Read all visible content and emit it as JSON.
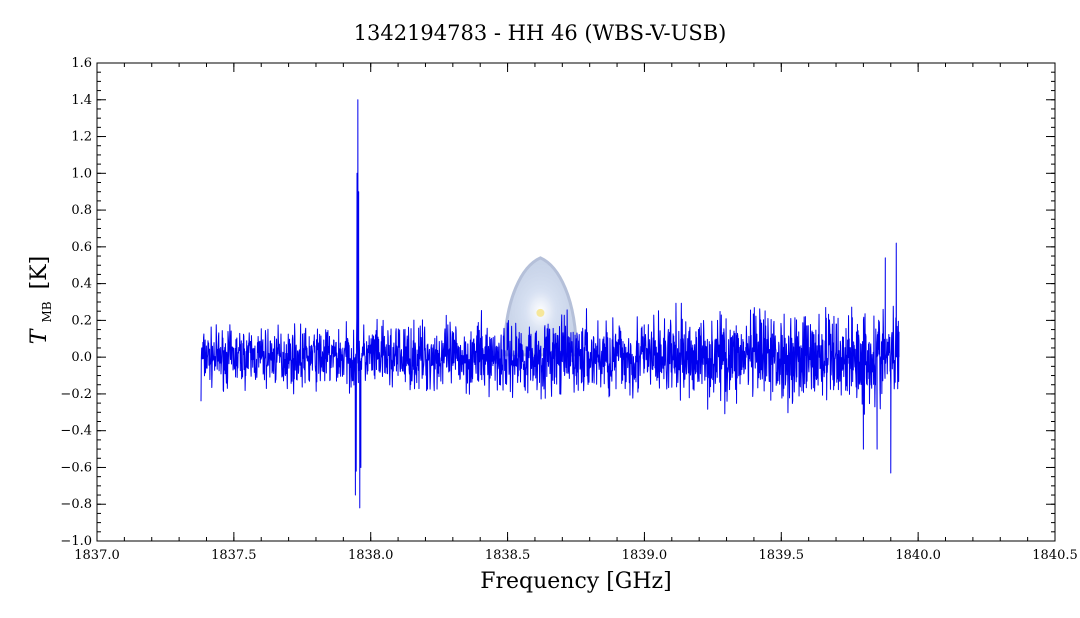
{
  "chart_data": {
    "type": "line",
    "title": "1342194783 - HH 46 (WBS-V-USB)",
    "xlabel": "Frequency [GHz]",
    "ylabel": {
      "symbol": "T",
      "subscript": "MB",
      "unit": "[K]"
    },
    "xlim": [
      1837.0,
      1840.5
    ],
    "ylim": [
      -1.0,
      1.6
    ],
    "xticks": [
      1837.0,
      1837.5,
      1838.0,
      1838.5,
      1839.0,
      1839.5,
      1840.0,
      1840.5
    ],
    "xtick_labels": [
      "1837.0",
      "1837.5",
      "1838.0",
      "1838.5",
      "1839.0",
      "1839.5",
      "1840.0",
      "1840.5"
    ],
    "yticks": [
      -1.0,
      -0.8,
      -0.6,
      -0.4,
      -0.2,
      0.0,
      0.2,
      0.4,
      0.6,
      0.8,
      1.0,
      1.2,
      1.4,
      1.6
    ],
    "ytick_labels": [
      "−1.0",
      "−0.8",
      "−0.6",
      "−0.4",
      "−0.2",
      "0.0",
      "0.2",
      "0.4",
      "0.6",
      "0.8",
      "1.0",
      "1.2",
      "1.4",
      "1.6"
    ],
    "x_minor_step": 0.1,
    "y_minor_step": 0.05,
    "grid": false,
    "legend": "none",
    "series": [
      {
        "color": "#0000ee",
        "style": "noisy spectrum",
        "x_range": [
          1837.38,
          1839.93
        ],
        "baseline_start": 0.0,
        "baseline_end": 0.0,
        "noise_amplitude_start": 0.1,
        "noise_amplitude_end": 0.18,
        "features": [
          {
            "x": 1837.944,
            "y": -0.75
          },
          {
            "x": 1837.947,
            "y": -0.62
          },
          {
            "x": 1837.95,
            "y": 1.0
          },
          {
            "x": 1837.953,
            "y": 1.4
          },
          {
            "x": 1837.956,
            "y": 0.9
          },
          {
            "x": 1837.96,
            "y": -0.82
          },
          {
            "x": 1837.964,
            "y": -0.6
          },
          {
            "x": 1839.8,
            "y": -0.5
          },
          {
            "x": 1839.85,
            "y": -0.5
          },
          {
            "x": 1839.88,
            "y": 0.54
          },
          {
            "x": 1839.9,
            "y": -0.63
          },
          {
            "x": 1839.92,
            "y": 0.62
          }
        ],
        "endpoints": [
          {
            "x": 1837.38,
            "y": -0.24
          },
          {
            "x": 1839.93,
            "y": 0.0
          }
        ]
      }
    ],
    "watermark": {
      "shape": "herschel-logo",
      "x": 1838.62,
      "y_top": 0.54,
      "y_bottom": -0.02,
      "color": "#8fa6cf"
    }
  }
}
